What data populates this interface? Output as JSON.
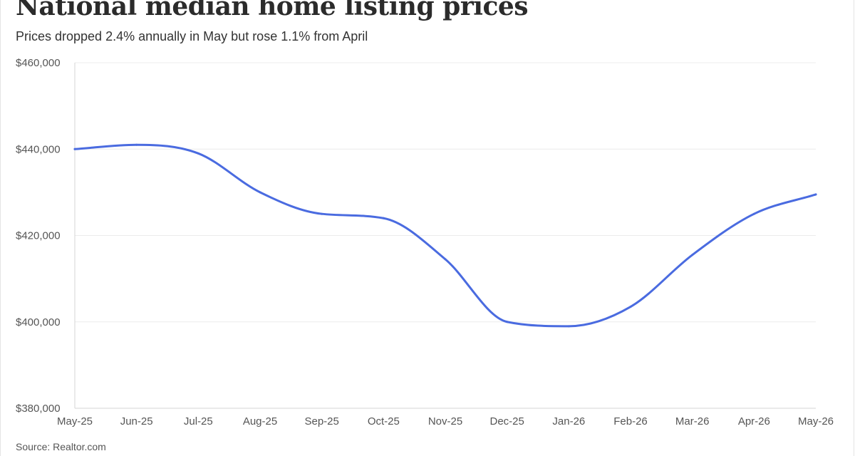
{
  "title": "National median home listing prices",
  "subtitle": "Prices dropped 2.4% annually in May but rose 1.1% from April",
  "source": "Source: Realtor.com",
  "colors": {
    "line": "#4a6be0",
    "grid": "#ececec",
    "axis": "#d4d4d4",
    "text": "#555555"
  },
  "chart_data": {
    "type": "line",
    "title": "National median home listing prices",
    "subtitle": "Prices dropped 2.4% annually in May but rose 1.1% from April",
    "xlabel": "",
    "ylabel": "",
    "categories": [
      "May-25",
      "Jun-25",
      "Jul-25",
      "Aug-25",
      "Sep-25",
      "Oct-25",
      "Nov-25",
      "Dec-25",
      "Jan-26",
      "Feb-26",
      "Mar-26",
      "Apr-26",
      "May-26"
    ],
    "series": [
      {
        "values": [
          440000,
          441000,
          439000,
          430000,
          425000,
          424000,
          414500,
          400000,
          399000,
          403500,
          415500,
          425000,
          429500
        ]
      }
    ],
    "ylim": [
      380000,
      460000
    ],
    "yticks": [
      380000,
      400000,
      420000,
      440000,
      460000
    ],
    "ytick_labels": [
      "$380,000",
      "$400,000",
      "$420,000",
      "$440,000",
      "$460,000"
    ],
    "grid": true,
    "legend": "none"
  }
}
